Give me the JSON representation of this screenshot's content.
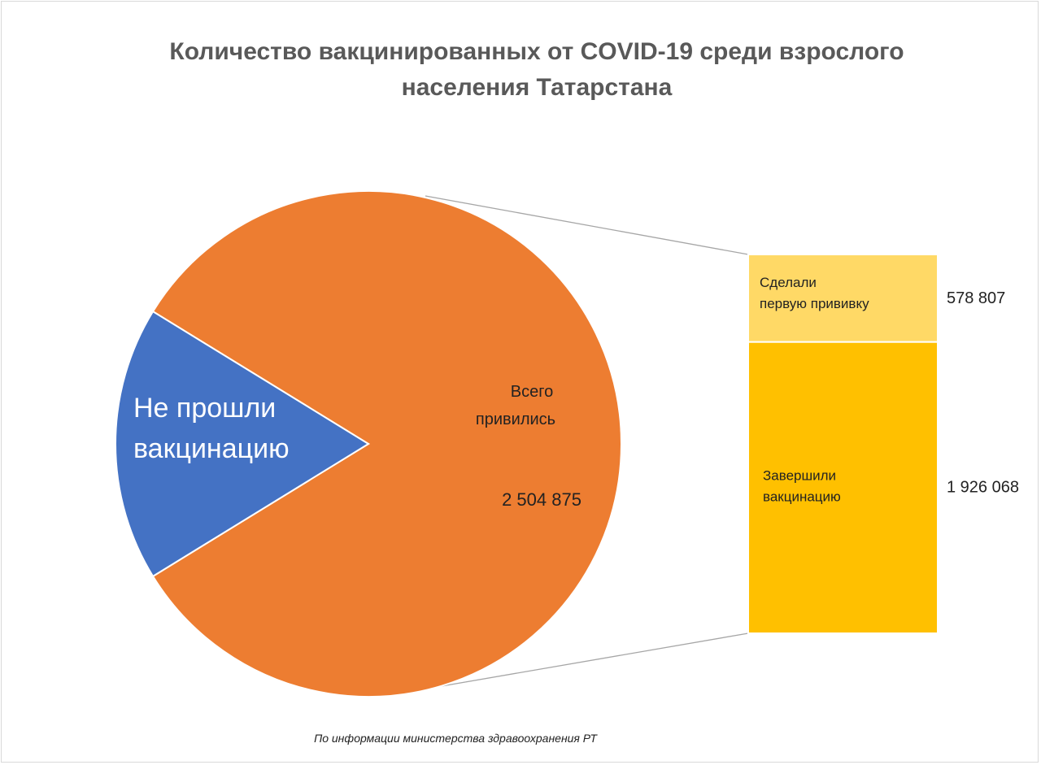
{
  "chart_data": {
    "type": "pie",
    "subtype": "pie-of-bar",
    "title": "Количество вакцинированных от COVID-19 среди взрослого населения Татарстана",
    "source_note": "По информации министерства здравоохранения РТ",
    "pie": {
      "slices": [
        {
          "label_lines": [
            "Всего",
            "привились"
          ],
          "value": 2504875,
          "value_label": "2 504 875",
          "color": "#ED7D31"
        },
        {
          "label_lines": [
            "Не прошли",
            "вакцинацию"
          ],
          "value": 533000,
          "value_label": "",
          "color": "#4472C4"
        }
      ]
    },
    "bar": {
      "segments": [
        {
          "label_lines": [
            "Сделали",
            "первую прививку"
          ],
          "value": 578807,
          "value_label": "578 807",
          "color": "#FFD966"
        },
        {
          "label_lines": [
            "Завершили",
            "вакцинацию"
          ],
          "value": 1926068,
          "value_label": "1 926 068",
          "color": "#FFC000"
        }
      ]
    }
  }
}
